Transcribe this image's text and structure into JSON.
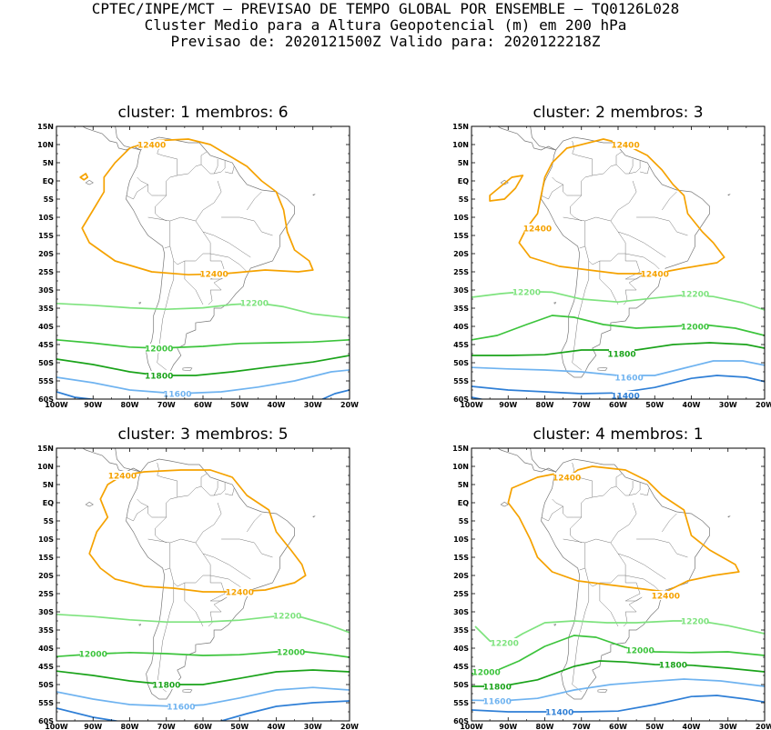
{
  "header": {
    "line1": "CPTEC/INPE/MCT – PREVISAO DE TEMPO GLOBAL POR ENSEMBLE – TQ0126L028",
    "line2": "Cluster Medio para a Altura Geopotencial (m) em 200 hPa",
    "line3": "Previsao de: 2020121500Z   Valido para: 2020122218Z"
  },
  "axes": {
    "lat_ticks": [
      "15N",
      "10N",
      "5N",
      "EQ",
      "5S",
      "10S",
      "15S",
      "20S",
      "25S",
      "30S",
      "35S",
      "40S",
      "45S",
      "50S",
      "55S",
      "60S"
    ],
    "lon_ticks": [
      "100W",
      "90W",
      "80W",
      "70W",
      "60W",
      "50W",
      "40W",
      "30W",
      "20W"
    ],
    "lon_range": [
      -100,
      -20
    ],
    "lat_range": [
      -60,
      15
    ]
  },
  "colors": {
    "c12400": "#f5a200",
    "c12200": "#7ee37e",
    "c12000": "#3cc43c",
    "c11800": "#1aa31a",
    "c11600": "#6fb3f0",
    "c11400": "#2f7fd6",
    "land": "#777777"
  },
  "panels": [
    {
      "title": "cluster: 1   membros: 6",
      "labels": [
        {
          "text": "12400",
          "lon": -74,
          "lat": 10,
          "color": "c12400"
        },
        {
          "text": "12400",
          "lon": -57,
          "lat": -25.5,
          "color": "c12400"
        },
        {
          "text": "12200",
          "lon": -46,
          "lat": -33.5,
          "color": "c12200"
        },
        {
          "text": "12000",
          "lon": -72,
          "lat": -46,
          "color": "c12000"
        },
        {
          "text": "11800",
          "lon": -72,
          "lat": -53.5,
          "color": "c11800"
        },
        {
          "text": "11600",
          "lon": -67,
          "lat": -58.5,
          "color": "c11600"
        }
      ]
    },
    {
      "title": "cluster: 2   membros: 3",
      "labels": [
        {
          "text": "12400",
          "lon": -58,
          "lat": 10,
          "color": "c12400"
        },
        {
          "text": "12400",
          "lon": -82,
          "lat": -13,
          "color": "c12400"
        },
        {
          "text": "12400",
          "lon": -50,
          "lat": -25.5,
          "color": "c12400"
        },
        {
          "text": "12200",
          "lon": -85,
          "lat": -30.5,
          "color": "c12200"
        },
        {
          "text": "12200",
          "lon": -39,
          "lat": -31,
          "color": "c12200"
        },
        {
          "text": "12000",
          "lon": -39,
          "lat": -40,
          "color": "c12000"
        },
        {
          "text": "11800",
          "lon": -59,
          "lat": -47.5,
          "color": "c11800"
        },
        {
          "text": "11600",
          "lon": -57,
          "lat": -54,
          "color": "c11600"
        },
        {
          "text": "11400",
          "lon": -58,
          "lat": -59,
          "color": "c11400"
        }
      ]
    },
    {
      "title": "cluster: 3   membros: 5",
      "labels": [
        {
          "text": "12400",
          "lon": -82,
          "lat": 7.5,
          "color": "c12400"
        },
        {
          "text": "12400",
          "lon": -50,
          "lat": -24.5,
          "color": "c12400"
        },
        {
          "text": "12200",
          "lon": -37,
          "lat": -31,
          "color": "c12200"
        },
        {
          "text": "12000",
          "lon": -90,
          "lat": -41.5,
          "color": "c12000"
        },
        {
          "text": "12000",
          "lon": -36,
          "lat": -41,
          "color": "c12000"
        },
        {
          "text": "11800",
          "lon": -70,
          "lat": -50,
          "color": "c11800"
        },
        {
          "text": "11600",
          "lon": -66,
          "lat": -56,
          "color": "c11600"
        }
      ]
    },
    {
      "title": "cluster: 4   membros: 1",
      "labels": [
        {
          "text": "12400",
          "lon": -74,
          "lat": 7,
          "color": "c12400"
        },
        {
          "text": "12400",
          "lon": -47,
          "lat": -25.5,
          "color": "c12400"
        },
        {
          "text": "12200",
          "lon": -91,
          "lat": -38.5,
          "color": "c12200"
        },
        {
          "text": "12200",
          "lon": -39,
          "lat": -32.5,
          "color": "c12200"
        },
        {
          "text": "12000",
          "lon": -96,
          "lat": -46.5,
          "color": "c12000"
        },
        {
          "text": "12000",
          "lon": -54,
          "lat": -40.5,
          "color": "c12000"
        },
        {
          "text": "11800",
          "lon": -93,
          "lat": -50.5,
          "color": "c11800"
        },
        {
          "text": "11800",
          "lon": -45,
          "lat": -44.5,
          "color": "c11800"
        },
        {
          "text": "11600",
          "lon": -93,
          "lat": -54.5,
          "color": "c11600"
        },
        {
          "text": "11400",
          "lon": -76,
          "lat": -57.5,
          "color": "c11400"
        }
      ]
    }
  ]
}
